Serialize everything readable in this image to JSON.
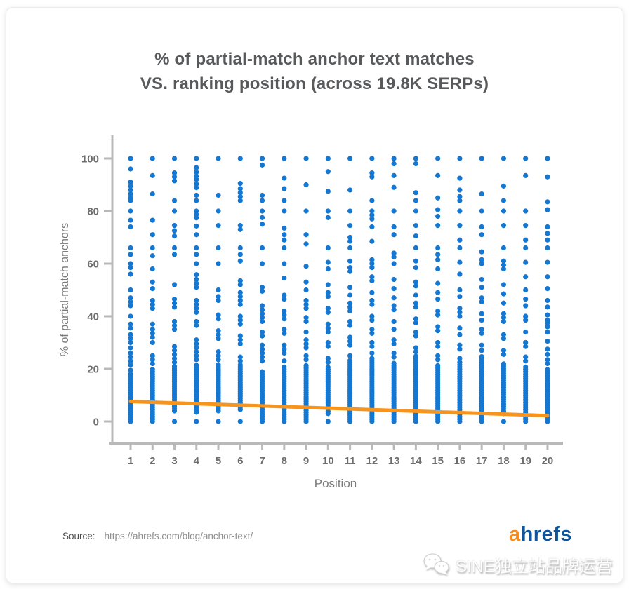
{
  "page": {
    "title_line1": "% of partial-match anchor text matches",
    "title_line2": "VS. ranking position (across 19.8K SERPs)"
  },
  "footer": {
    "source_label": "Source:",
    "source_url": "https://ahrefs.com/blog/anchor-text/",
    "logo": {
      "part1": "a",
      "part2": "hrefs",
      "part1_color": "#F78D1E",
      "part2_color": "#10559A"
    },
    "watermark": {
      "icon": "wechat-icon",
      "text": "SINE独立站品牌运营"
    }
  },
  "chart_data": {
    "type": "scatter",
    "title": "% of partial-match anchor text matches VS. ranking position (across 19.8K SERPs)",
    "xlabel": "Position",
    "ylabel": "% of partial-match anchors",
    "x_ticks": [
      1,
      2,
      3,
      4,
      5,
      6,
      7,
      8,
      9,
      10,
      11,
      12,
      13,
      14,
      15,
      16,
      17,
      18,
      19,
      20
    ],
    "y_ticks": [
      0,
      20,
      40,
      60,
      80,
      100
    ],
    "xlim": [
      0.2,
      20.7
    ],
    "ylim": [
      -8,
      108
    ],
    "grid": false,
    "legend": null,
    "point_color": "#1478D2",
    "axis_color": "#b9b9b9",
    "trend": {
      "color": "#F7941E",
      "x1": 1,
      "y1": 7.6,
      "x2": 20,
      "y2": 2.2
    },
    "columns": [
      {
        "x": 1,
        "points": [
          100,
          96,
          91,
          89.5,
          88,
          86.5,
          85,
          84,
          80,
          76.5,
          74,
          66,
          63.5,
          60,
          58.5,
          56,
          50,
          47,
          45.5,
          44,
          40,
          37,
          35.5,
          33,
          31.5,
          30,
          28,
          26,
          24.5,
          23,
          21.5,
          19.5,
          18
        ],
        "dense_bands": [
          {
            "from": 0,
            "to": 17,
            "step": 0.85
          }
        ]
      },
      {
        "x": 2,
        "points": [
          100,
          93.5,
          86.5,
          76.5,
          71,
          66,
          63,
          58,
          53,
          50.5,
          46,
          44.5,
          43,
          37,
          35,
          33.5,
          32,
          30,
          25,
          23.5,
          22
        ],
        "dense_bands": [
          {
            "from": 0,
            "to": 20.5,
            "step": 0.9
          }
        ]
      },
      {
        "x": 3,
        "points": [
          100,
          94.5,
          93,
          91.5,
          84,
          80,
          74.5,
          72.5,
          70.5,
          66,
          63.5,
          52,
          46.5,
          45,
          43.5,
          38,
          36.5,
          35,
          28.5,
          27,
          25.5,
          24,
          22.5,
          0
        ],
        "dense_bands": [
          {
            "from": 4,
            "to": 21,
            "step": 0.85
          }
        ]
      },
      {
        "x": 4,
        "points": [
          100,
          96.5,
          94.8,
          93.3,
          92,
          90.3,
          88.9,
          86,
          84,
          80,
          78.7,
          77.4,
          74.3,
          71,
          66,
          63.5,
          60,
          55.8,
          54,
          52.5,
          51,
          46,
          44.5,
          43,
          41.5,
          38,
          36.5,
          31,
          29.5,
          28,
          26.5,
          25,
          23.5,
          0
        ],
        "dense_bands": [
          {
            "from": 3.5,
            "to": 22,
            "step": 0.85
          }
        ]
      },
      {
        "x": 5,
        "points": [
          100,
          86,
          80,
          74.5,
          66,
          60,
          50,
          47.5,
          46,
          40.5,
          39,
          34.5,
          33,
          31.5,
          26.5,
          25,
          23.5,
          0
        ],
        "dense_bands": [
          {
            "from": 4,
            "to": 22,
            "step": 0.8
          }
        ]
      },
      {
        "x": 6,
        "points": [
          100,
          90.5,
          88.5,
          87,
          85.5,
          84,
          74.5,
          73,
          66,
          63.5,
          61,
          53.5,
          52,
          49,
          47.5,
          46,
          44.5,
          40,
          38.5,
          37,
          32.5,
          31,
          29.5,
          24.5,
          23,
          0
        ],
        "dense_bands": [
          {
            "from": 4.5,
            "to": 21.5,
            "step": 0.85
          }
        ]
      },
      {
        "x": 7,
        "points": [
          100,
          97.5,
          86,
          84,
          80,
          77.5,
          75,
          66,
          60,
          51,
          49.5,
          44,
          42.5,
          41,
          39.5,
          38,
          34,
          32.5,
          29,
          27.5,
          26,
          24.5,
          23
        ],
        "dense_bands": [
          {
            "from": 0,
            "to": 19.5,
            "step": 0.9
          }
        ]
      },
      {
        "x": 8,
        "points": [
          100,
          92.5,
          88.5,
          84,
          80,
          73.5,
          71,
          69,
          66,
          60,
          54.5,
          48,
          46.5,
          42,
          40.5,
          39,
          35,
          33.5,
          29,
          27.5,
          26,
          23
        ],
        "dense_bands": [
          {
            "from": 0,
            "to": 21,
            "step": 0.9
          }
        ]
      },
      {
        "x": 9,
        "points": [
          100,
          90,
          80,
          71,
          67.5,
          59,
          53,
          50,
          46,
          44.5,
          43,
          39.5,
          38,
          34,
          31,
          29.5,
          28,
          25,
          23.5
        ],
        "dense_bands": [
          {
            "from": 0,
            "to": 22,
            "step": 0.85
          }
        ]
      },
      {
        "x": 10,
        "points": [
          100,
          95,
          87.5,
          80,
          77.5,
          66,
          60.5,
          58,
          52,
          49,
          47.5,
          43,
          41.5,
          37,
          35.5,
          34,
          30,
          28.5,
          24,
          22.5,
          0
        ],
        "dense_bands": [
          {
            "from": 3,
            "to": 21,
            "step": 0.8
          }
        ]
      },
      {
        "x": 11,
        "points": [
          100,
          88,
          80,
          74.5,
          70,
          68.5,
          66,
          61,
          58.5,
          57,
          51,
          48,
          45,
          43.5,
          42,
          38,
          36.5,
          32,
          30.5,
          29,
          25
        ],
        "dense_bands": [
          {
            "from": 0,
            "to": 23.5,
            "step": 0.8
          }
        ]
      },
      {
        "x": 12,
        "points": [
          100,
          94.5,
          93,
          84,
          80,
          78.5,
          77,
          74,
          68.5,
          61.5,
          60,
          58.5,
          55,
          53.5,
          49,
          46,
          44.5,
          40,
          38.5,
          35,
          33.5,
          30,
          28.5,
          26
        ],
        "dense_bands": [
          {
            "from": 0,
            "to": 24,
            "step": 0.8
          }
        ]
      },
      {
        "x": 13,
        "points": [
          100,
          98,
          93.5,
          89,
          80,
          74,
          71,
          64,
          62.5,
          60,
          54,
          50.5,
          47,
          44,
          42.5,
          38,
          35,
          31,
          29.5,
          26,
          24.5
        ],
        "dense_bands": [
          {
            "from": 0,
            "to": 22.5,
            "step": 0.85
          }
        ]
      },
      {
        "x": 14,
        "points": [
          100,
          98,
          87,
          84,
          80,
          74.5,
          70.5,
          66,
          61,
          58.5,
          53,
          51.5,
          48,
          45,
          43.5,
          39,
          37.5,
          34,
          32.5,
          28,
          26.5
        ],
        "dense_bands": [
          {
            "from": 0,
            "to": 25,
            "step": 0.8
          }
        ]
      },
      {
        "x": 15,
        "points": [
          100,
          93.5,
          85,
          80.5,
          78,
          74.5,
          66,
          63.5,
          61.5,
          58,
          52.5,
          49,
          46.5,
          42,
          40.5,
          36,
          34.5,
          30,
          28.5,
          25,
          23.5
        ],
        "dense_bands": [
          {
            "from": 0,
            "to": 22,
            "step": 0.85
          }
        ]
      },
      {
        "x": 16,
        "points": [
          100,
          92.5,
          88,
          85.5,
          84,
          80,
          74.5,
          69,
          66,
          60.5,
          56,
          50,
          47.5,
          43,
          41.5,
          40,
          35.5,
          33,
          29,
          27.5,
          24
        ],
        "dense_bands": [
          {
            "from": 0,
            "to": 22.5,
            "step": 0.9
          }
        ]
      },
      {
        "x": 17,
        "points": [
          100,
          86.5,
          80,
          74,
          71,
          64.5,
          61.5,
          60,
          54,
          51,
          47,
          45.5,
          41,
          38.5,
          35,
          33.5,
          29,
          27
        ],
        "dense_bands": [
          {
            "from": 0,
            "to": 25,
            "step": 0.85
          }
        ]
      },
      {
        "x": 18,
        "points": [
          100,
          89.5,
          84,
          80,
          74.5,
          66,
          61,
          59.5,
          58,
          52,
          48.5,
          45,
          41,
          39.5,
          38,
          33,
          31.5,
          27,
          25.5,
          0
        ],
        "dense_bands": [
          {
            "from": 3,
            "to": 22,
            "step": 0.9
          }
        ]
      },
      {
        "x": 19,
        "points": [
          100,
          93.5,
          80,
          74.5,
          69,
          66,
          60.5,
          55,
          50,
          46.5,
          44,
          40,
          38.5,
          34,
          30,
          28.5,
          24.5,
          23
        ],
        "dense_bands": [
          {
            "from": 0,
            "to": 21,
            "step": 0.9
          }
        ]
      },
      {
        "x": 20,
        "points": [
          100,
          93,
          83.5,
          80.5,
          74,
          71.5,
          69,
          66,
          60.5,
          55,
          50.5,
          46,
          43.5,
          40.5,
          38.5,
          37.5,
          36,
          34,
          30.5,
          27.5,
          25.5,
          23.5,
          22,
          0
        ],
        "dense_bands": [
          {
            "from": 1,
            "to": 20.5,
            "step": 0.85
          }
        ]
      }
    ]
  }
}
